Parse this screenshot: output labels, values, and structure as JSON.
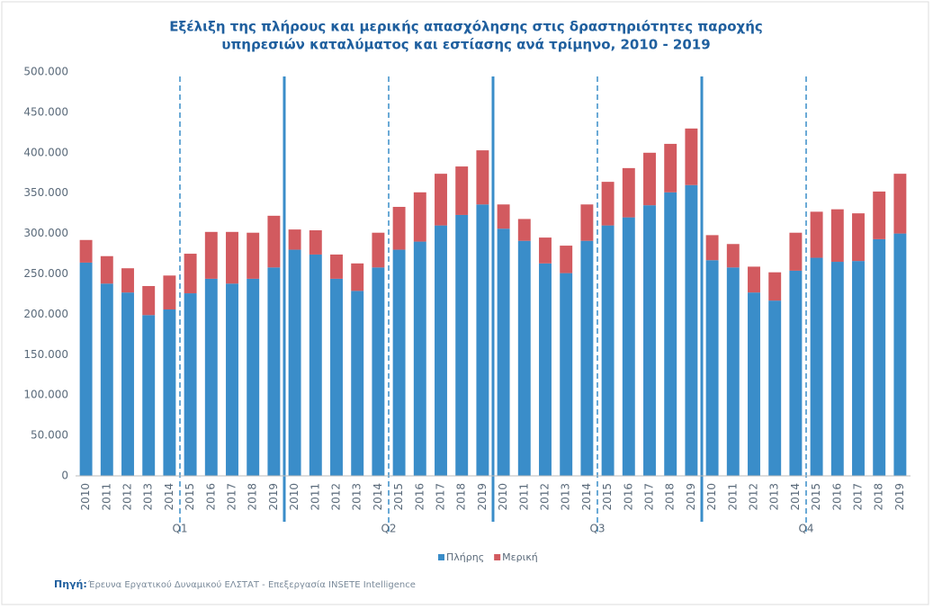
{
  "chart_data": {
    "type": "stacked_bar",
    "title": [
      "Εξέλιξη της πλήρους και μερικής απασχόλησης στις δραστηριότητες παροχής",
      "υπηρεσιών καταλύματος και εστίασης ανά τρίμηνο, 2010 - 2019"
    ],
    "categories": [
      "2010",
      "2011",
      "2012",
      "2013",
      "2014",
      "2015",
      "2016",
      "2017",
      "2018",
      "2019",
      "2010",
      "2011",
      "2012",
      "2013",
      "2014",
      "2015",
      "2016",
      "2017",
      "2018",
      "2019",
      "2010",
      "2011",
      "2012",
      "2013",
      "2014",
      "2015",
      "2016",
      "2017",
      "2018",
      "2019",
      "2010",
      "2011",
      "2012",
      "2013",
      "2014",
      "2015",
      "2016",
      "2017",
      "2018",
      "2019"
    ],
    "groups": [
      "Q1",
      "Q2",
      "Q3",
      "Q4"
    ],
    "series": [
      {
        "name": "Πλήρης",
        "color": "#3a8dc9",
        "values": [
          264000,
          238000,
          227000,
          199000,
          206000,
          226000,
          244000,
          238000,
          244000,
          258000,
          280000,
          274000,
          244000,
          229000,
          258000,
          280000,
          290000,
          310000,
          323000,
          336000,
          306000,
          291000,
          263000,
          251000,
          291000,
          310000,
          320000,
          335000,
          351000,
          360000,
          267000,
          258000,
          227000,
          217000,
          254000,
          270000,
          265000,
          266000,
          293000,
          300000
        ]
      },
      {
        "name": "Μερική",
        "color": "#d25a5f",
        "values": [
          28000,
          34000,
          30000,
          36000,
          42000,
          49000,
          58000,
          64000,
          57000,
          64000,
          25000,
          30000,
          30000,
          34000,
          43000,
          53000,
          61000,
          64000,
          60000,
          67000,
          30000,
          27000,
          32000,
          34000,
          45000,
          54000,
          61000,
          65000,
          60000,
          70000,
          31000,
          29000,
          32000,
          35000,
          47000,
          57000,
          65000,
          59000,
          59000,
          74000
        ]
      }
    ],
    "ylim": [
      0,
      500000
    ],
    "yticks": [
      0,
      {
        "value": 50000,
        "label": "50.000"
      },
      {
        "value": 100000,
        "label": "100.000"
      },
      {
        "value": 150000,
        "label": "150.000"
      },
      {
        "value": 200000,
        "label": "200.000"
      },
      {
        "value": 250000,
        "label": "250.000"
      },
      {
        "value": 300000,
        "label": "300.000"
      },
      {
        "value": 350000,
        "label": "350.000"
      },
      {
        "value": 400000,
        "label": "400.000"
      },
      {
        "value": 450000,
        "label": "450.000"
      },
      {
        "value": 500000,
        "label": "500.000"
      }
    ],
    "grid": false,
    "legend": "bottom",
    "source_label": "Πηγή:",
    "source": "Έρευνα Εργατικού Δυναμικού ΕΛΣΤΑΤ - Επεξεργασία INSETE Intelligence"
  }
}
